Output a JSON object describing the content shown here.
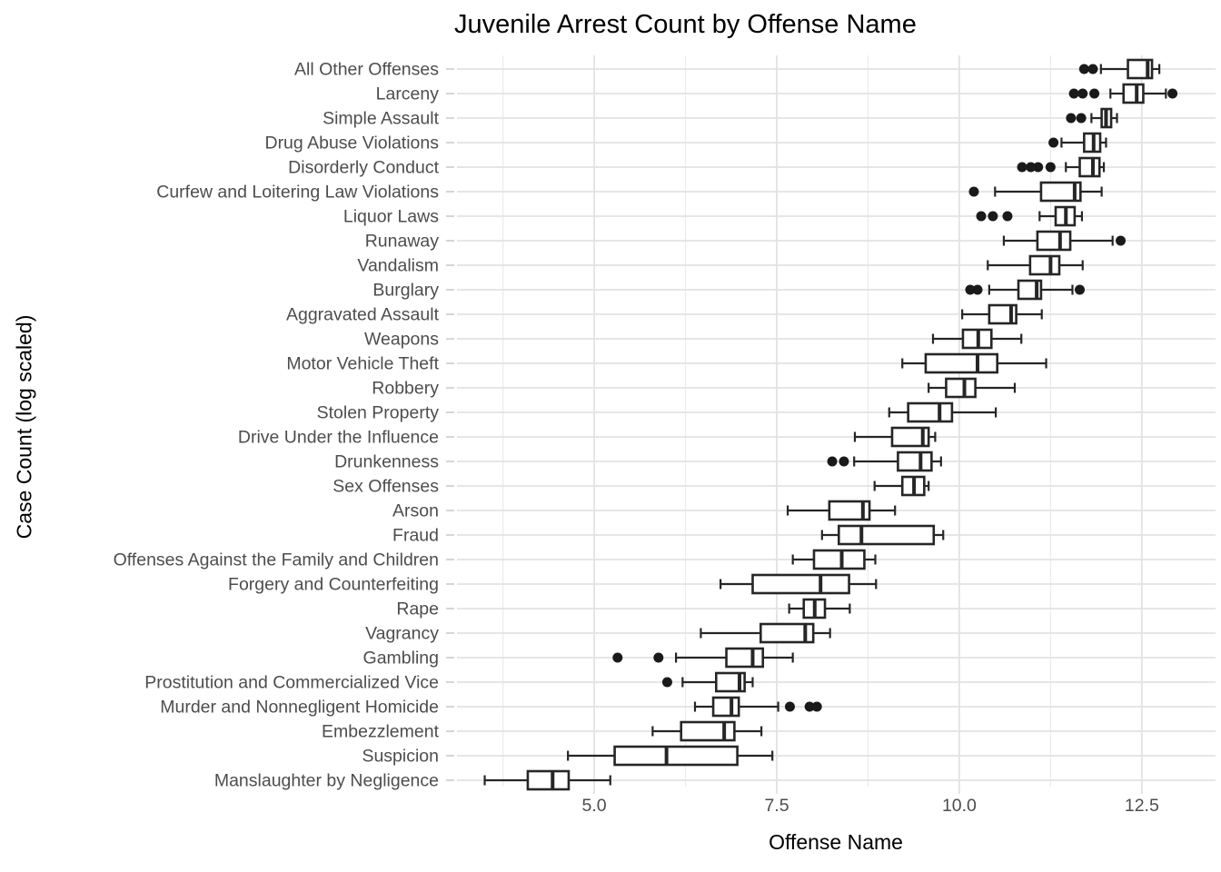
{
  "title": "Juvenile Arrest Count by Offense Name",
  "chart_data": {
    "type": "boxplot",
    "orientation": "horizontal",
    "title": "Juvenile Arrest Count by Offense Name",
    "xlabel": "Offense Name",
    "ylabel": "Case Count (log scaled)",
    "x_ticks": [
      5.0,
      7.5,
      10.0,
      12.5
    ],
    "x_tick_labels": [
      "5.0",
      "7.5",
      "10.0",
      "12.5"
    ],
    "x_minor_ticks": [
      3.75,
      6.25,
      8.75,
      11.25
    ],
    "xlim": [
      3.12,
      13.51
    ],
    "grid": "major-and-minor, light gray on white",
    "legend": "none",
    "colors": {
      "box_stroke": "#262626",
      "box_fill": "#ffffff",
      "outlier_fill": "#1a1a1a",
      "grid_major": "#e2e2e2",
      "grid_minor": "#ececec",
      "axis_text": "#4d4d4d",
      "title_text": "#000000"
    },
    "rows": [
      {
        "label": "All Other Offenses",
        "low": 11.94,
        "q1": 12.31,
        "median": 12.58,
        "q3": 12.64,
        "high": 12.74,
        "outliers": [
          11.71,
          11.83
        ]
      },
      {
        "label": "Larceny",
        "low": 12.07,
        "q1": 12.25,
        "median": 12.43,
        "q3": 12.52,
        "high": 12.83,
        "outliers": [
          11.57,
          11.69,
          11.85,
          12.92
        ]
      },
      {
        "label": "Simple Assault",
        "low": 11.81,
        "q1": 11.95,
        "median": 12.01,
        "q3": 12.08,
        "high": 12.16,
        "outliers": [
          11.53,
          11.67
        ]
      },
      {
        "label": "Drug Abuse Violations",
        "low": 11.4,
        "q1": 11.71,
        "median": 11.84,
        "q3": 11.93,
        "high": 12.01,
        "outliers": [
          11.29
        ]
      },
      {
        "label": "Disorderly Conduct",
        "low": 11.46,
        "q1": 11.65,
        "median": 11.83,
        "q3": 11.92,
        "high": 11.98,
        "outliers": [
          10.86,
          10.98,
          11.08,
          11.25
        ]
      },
      {
        "label": "Curfew and Loitering Law Violations",
        "low": 10.49,
        "q1": 11.12,
        "median": 11.58,
        "q3": 11.66,
        "high": 11.95,
        "outliers": [
          10.2
        ]
      },
      {
        "label": "Liquor Laws",
        "low": 11.1,
        "q1": 11.32,
        "median": 11.46,
        "q3": 11.58,
        "high": 11.68,
        "outliers": [
          10.3,
          10.46,
          10.66
        ]
      },
      {
        "label": "Runaway",
        "low": 10.61,
        "q1": 11.07,
        "median": 11.38,
        "q3": 11.52,
        "high": 12.1,
        "outliers": [
          12.21
        ]
      },
      {
        "label": "Vandalism",
        "low": 10.39,
        "q1": 10.97,
        "median": 11.25,
        "q3": 11.37,
        "high": 11.69,
        "outliers": []
      },
      {
        "label": "Burglary",
        "low": 10.41,
        "q1": 10.81,
        "median": 11.06,
        "q3": 11.12,
        "high": 11.55,
        "outliers": [
          10.15,
          10.25,
          11.65
        ]
      },
      {
        "label": "Aggravated Assault",
        "low": 10.04,
        "q1": 10.41,
        "median": 10.71,
        "q3": 10.78,
        "high": 11.13,
        "outliers": []
      },
      {
        "label": "Weapons",
        "low": 9.64,
        "q1": 10.05,
        "median": 10.26,
        "q3": 10.44,
        "high": 10.85,
        "outliers": []
      },
      {
        "label": "Motor Vehicle Theft",
        "low": 9.22,
        "q1": 9.54,
        "median": 10.25,
        "q3": 10.52,
        "high": 11.19,
        "outliers": []
      },
      {
        "label": "Robbery",
        "low": 9.58,
        "q1": 9.82,
        "median": 10.07,
        "q3": 10.22,
        "high": 10.76,
        "outliers": []
      },
      {
        "label": "Stolen Property",
        "low": 9.04,
        "q1": 9.3,
        "median": 9.73,
        "q3": 9.9,
        "high": 10.5,
        "outliers": []
      },
      {
        "label": "Drive Under the Influence",
        "low": 8.57,
        "q1": 9.08,
        "median": 9.5,
        "q3": 9.58,
        "high": 9.67,
        "outliers": []
      },
      {
        "label": "Drunkenness",
        "low": 8.56,
        "q1": 9.16,
        "median": 9.47,
        "q3": 9.62,
        "high": 9.75,
        "outliers": [
          8.26,
          8.42
        ]
      },
      {
        "label": "Sex Offenses",
        "low": 8.84,
        "q1": 9.22,
        "median": 9.38,
        "q3": 9.52,
        "high": 9.58,
        "outliers": []
      },
      {
        "label": "Arson",
        "low": 7.65,
        "q1": 8.22,
        "median": 8.68,
        "q3": 8.77,
        "high": 9.12,
        "outliers": []
      },
      {
        "label": "Fraud",
        "low": 8.12,
        "q1": 8.35,
        "median": 8.66,
        "q3": 9.65,
        "high": 9.78,
        "outliers": []
      },
      {
        "label": "Offenses Against the Family and Children",
        "low": 7.72,
        "q1": 8.01,
        "median": 8.39,
        "q3": 8.7,
        "high": 8.85,
        "outliers": []
      },
      {
        "label": "Forgery and Counterfeiting",
        "low": 6.73,
        "q1": 7.17,
        "median": 8.1,
        "q3": 8.49,
        "high": 8.86,
        "outliers": []
      },
      {
        "label": "Rape",
        "low": 7.67,
        "q1": 7.87,
        "median": 8.02,
        "q3": 8.16,
        "high": 8.5,
        "outliers": []
      },
      {
        "label": "Vagrancy",
        "low": 6.46,
        "q1": 7.28,
        "median": 7.89,
        "q3": 8.0,
        "high": 8.23,
        "outliers": []
      },
      {
        "label": "Gambling",
        "low": 6.12,
        "q1": 6.81,
        "median": 7.17,
        "q3": 7.31,
        "high": 7.72,
        "outliers": [
          5.32,
          5.88
        ]
      },
      {
        "label": "Prostitution and Commercialized Vice",
        "low": 6.21,
        "q1": 6.67,
        "median": 6.99,
        "q3": 7.06,
        "high": 7.17,
        "outliers": [
          6.0
        ]
      },
      {
        "label": "Murder and Nonnegligent Homicide",
        "low": 6.38,
        "q1": 6.63,
        "median": 6.88,
        "q3": 6.98,
        "high": 7.52,
        "outliers": [
          7.68,
          7.95,
          8.05
        ]
      },
      {
        "label": "Embezzlement",
        "low": 5.8,
        "q1": 6.19,
        "median": 6.78,
        "q3": 6.92,
        "high": 7.29,
        "outliers": []
      },
      {
        "label": "Suspicion",
        "low": 4.64,
        "q1": 5.28,
        "median": 5.99,
        "q3": 6.96,
        "high": 7.44,
        "outliers": []
      },
      {
        "label": "Manslaughter by Negligence",
        "low": 3.5,
        "q1": 4.09,
        "median": 4.43,
        "q3": 4.65,
        "high": 5.22,
        "outliers": []
      }
    ]
  }
}
